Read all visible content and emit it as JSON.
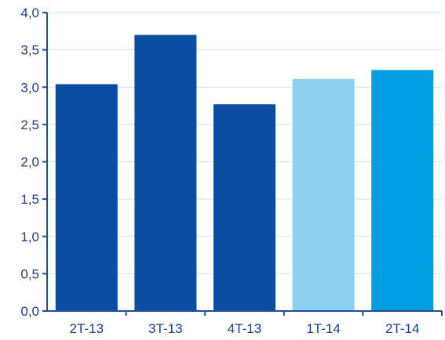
{
  "chart_data": {
    "type": "bar",
    "categories": [
      "2T-13",
      "3T-13",
      "4T-13",
      "1T-14",
      "2T-14"
    ],
    "values": [
      3.04,
      3.7,
      2.77,
      3.11,
      3.23
    ],
    "bar_colors": [
      "#0a4da2",
      "#0a4da2",
      "#0a4da2",
      "#8dd0f2",
      "#009fe3"
    ],
    "ylim": [
      0,
      4
    ],
    "yticks": [
      {
        "value": 0,
        "label": "0,0"
      },
      {
        "value": 0.5,
        "label": "0,5"
      },
      {
        "value": 1,
        "label": "1,0"
      },
      {
        "value": 1.5,
        "label": "1,5"
      },
      {
        "value": 2,
        "label": "2,0"
      },
      {
        "value": 2.5,
        "label": "2,5"
      },
      {
        "value": 3,
        "label": "3,0"
      },
      {
        "value": 3.5,
        "label": "3,5"
      },
      {
        "value": 4,
        "label": "4,0"
      }
    ],
    "grid": true,
    "legend": "none",
    "title": "",
    "xlabel": "",
    "ylabel": ""
  }
}
